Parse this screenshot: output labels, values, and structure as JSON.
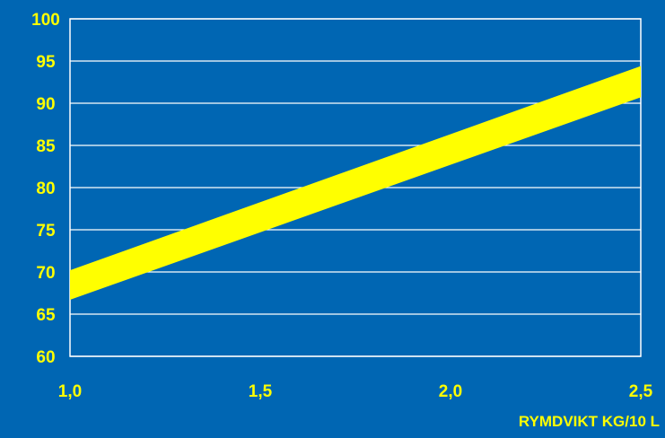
{
  "colors": {
    "background": "#0066b3",
    "grid": "#ffffff",
    "band": "#ffff00",
    "tick_text": "#ffff00",
    "xlabel_text": "#ffff00"
  },
  "chart_data": {
    "type": "area",
    "title": "",
    "xlabel": "RYMDVIKT KG/10 L",
    "ylabel": "",
    "xlim": [
      1.0,
      2.5
    ],
    "ylim": [
      60,
      100
    ],
    "grid": true,
    "x_ticks": [
      "1,0",
      "1,5",
      "2,0",
      "2,5"
    ],
    "x_tick_values": [
      1.0,
      1.5,
      2.0,
      2.5
    ],
    "y_ticks": [
      "100",
      "95",
      "90",
      "85",
      "80",
      "75",
      "70",
      "65",
      "60"
    ],
    "y_tick_values": [
      100,
      95,
      90,
      85,
      80,
      75,
      70,
      65,
      60
    ],
    "series": [
      {
        "x": [
          1.0,
          2.5
        ],
        "lower": [
          66.7,
          90.7
        ],
        "upper": [
          70.2,
          94.4
        ]
      }
    ]
  }
}
